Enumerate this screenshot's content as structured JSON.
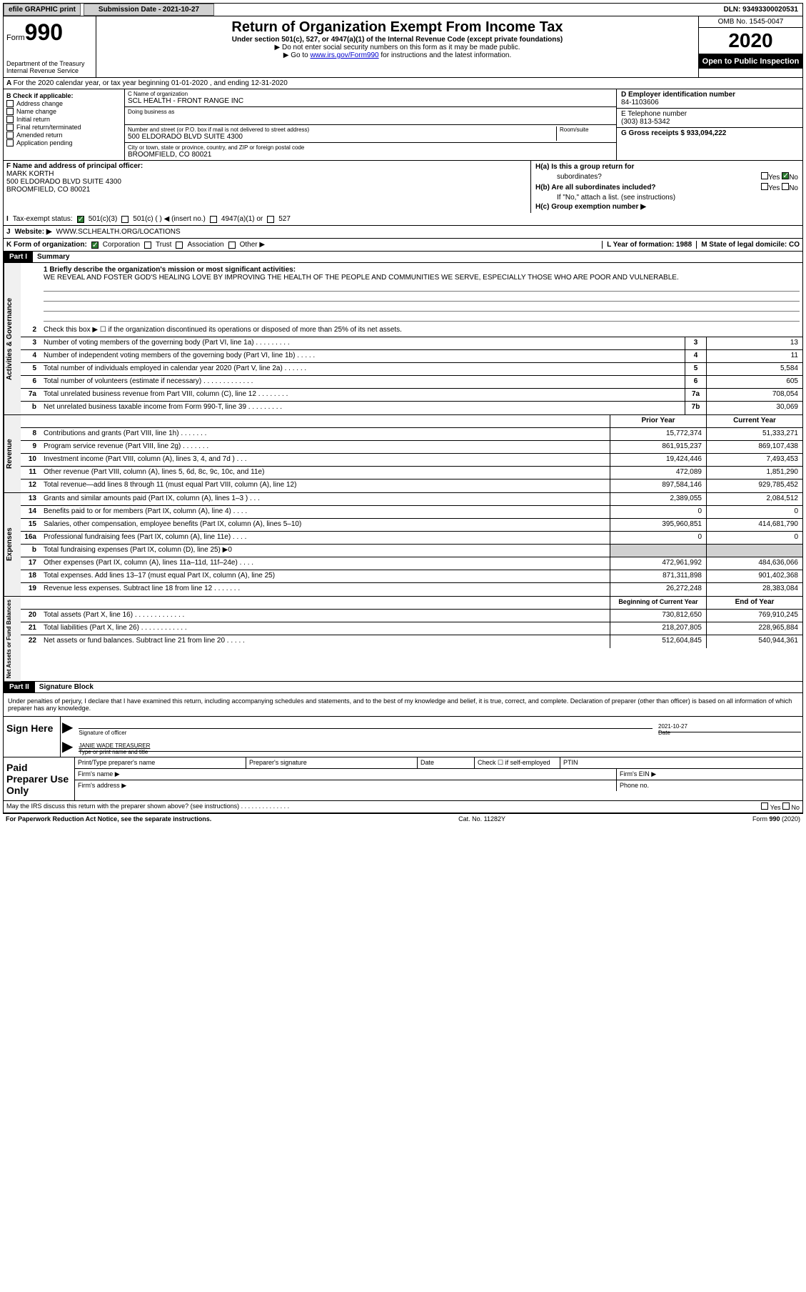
{
  "top": {
    "efile": "efile GRAPHIC print",
    "subLabel": "Submission Date - 2021-10-27",
    "dln": "DLN: 93493300020531"
  },
  "header": {
    "formWord": "Form",
    "formNum": "990",
    "title": "Return of Organization Exempt From Income Tax",
    "subtitle": "Under section 501(c), 527, or 4947(a)(1) of the Internal Revenue Code (except private foundations)",
    "line1": "▶ Do not enter social security numbers on this form as it may be made public.",
    "line2a": "▶ Go to ",
    "link": "www.irs.gov/Form990",
    "line2b": " for instructions and the latest information.",
    "omb": "OMB No. 1545-0047",
    "year": "2020",
    "openPublic": "Open to Public Inspection",
    "dept": "Department of the Treasury Internal Revenue Service"
  },
  "sectionA": "For the 2020 calendar year, or tax year beginning 01-01-2020   , and ending 12-31-2020",
  "boxB": {
    "label": "B Check if applicable:",
    "items": [
      "Address change",
      "Name change",
      "Initial return",
      "Final return/terminated",
      "Amended return",
      "Application pending"
    ]
  },
  "boxC": {
    "nameLabel": "C Name of organization",
    "name": "SCL HEALTH - FRONT RANGE INC",
    "dbaLabel": "Doing business as",
    "addrLabel": "Number and street (or P.O. box if mail is not delivered to street address)",
    "roomLabel": "Room/suite",
    "addr": "500 ELDORADO BLVD SUITE 4300",
    "cityLabel": "City or town, state or province, country, and ZIP or foreign postal code",
    "city": "BROOMFIELD, CO  80021"
  },
  "boxD": {
    "label": "D Employer identification number",
    "val": "84-1103606"
  },
  "boxE": {
    "label": "E Telephone number",
    "val": "(303) 813-5342"
  },
  "boxG": {
    "label": "G Gross receipts $ 933,094,222"
  },
  "boxF": {
    "label": "F  Name and address of principal officer:",
    "name": "MARK KORTH",
    "addr1": "500 ELDORADO BLVD SUITE 4300",
    "addr2": "BROOMFIELD, CO  80021"
  },
  "boxH": {
    "a": "H(a)  Is this a group return for",
    "a2": "subordinates?",
    "b": "H(b)  Are all subordinates included?",
    "note": "If \"No,\" attach a list. (see instructions)",
    "c": "H(c)  Group exemption number ▶"
  },
  "boxI": {
    "label": "Tax-exempt status:",
    "opts": [
      "501(c)(3)",
      "501(c) (  ) ◀ (insert no.)",
      "4947(a)(1) or",
      "527"
    ]
  },
  "boxJ": {
    "label": "Website: ▶",
    "val": "WWW.SCLHEALTH.ORG/LOCATIONS"
  },
  "boxK": {
    "label": "K Form of organization:",
    "opts": [
      "Corporation",
      "Trust",
      "Association",
      "Other ▶"
    ]
  },
  "boxL": {
    "label": "L Year of formation: 1988"
  },
  "boxM": {
    "label": "M State of legal domicile: CO"
  },
  "part1": {
    "header": "Part I",
    "title": "Summary"
  },
  "mission": {
    "q": "1  Briefly describe the organization's mission or most significant activities:",
    "text": "WE REVEAL AND FOSTER GOD'S HEALING LOVE BY IMPROVING THE HEALTH OF THE PEOPLE AND COMMUNITIES WE SERVE, ESPECIALLY THOSE WHO ARE POOR AND VULNERABLE."
  },
  "governance": {
    "sideLabel": "Activities & Governance",
    "rows": [
      {
        "n": "2",
        "t": "Check this box ▶ ☐ if the organization discontinued its operations or disposed of more than 25% of its net assets."
      },
      {
        "n": "3",
        "t": "Number of voting members of the governing body (Part VI, line 1a)  .   .   .   .   .   .   .   .   .",
        "box": "3",
        "v": "13"
      },
      {
        "n": "4",
        "t": "Number of independent voting members of the governing body (Part VI, line 1b)  .   .   .   .   .",
        "box": "4",
        "v": "11"
      },
      {
        "n": "5",
        "t": "Total number of individuals employed in calendar year 2020 (Part V, line 2a)  .   .   .   .   .   .",
        "box": "5",
        "v": "5,584"
      },
      {
        "n": "6",
        "t": "Total number of volunteers (estimate if necessary)  .   .   .   .   .   .   .   .   .   .   .   .   .",
        "box": "6",
        "v": "605"
      },
      {
        "n": "7a",
        "t": "Total unrelated business revenue from Part VIII, column (C), line 12  .   .   .   .   .   .   .   .",
        "box": "7a",
        "v": "708,054"
      },
      {
        "n": "b",
        "t": "Net unrelated business taxable income from Form 990-T, line 39  .   .   .   .   .   .   .   .   .",
        "box": "7b",
        "v": "30,069"
      }
    ]
  },
  "revenueHeader": {
    "prior": "Prior Year",
    "current": "Current Year"
  },
  "revenue": {
    "sideLabel": "Revenue",
    "rows": [
      {
        "n": "8",
        "t": "Contributions and grants (Part VIII, line 1h)  .   .   .   .   .   .   .",
        "p": "15,772,374",
        "c": "51,333,271"
      },
      {
        "n": "9",
        "t": "Program service revenue (Part VIII, line 2g)  .   .   .   .   .   .   .",
        "p": "861,915,237",
        "c": "869,107,438"
      },
      {
        "n": "10",
        "t": "Investment income (Part VIII, column (A), lines 3, 4, and 7d )  .   .   .",
        "p": "19,424,446",
        "c": "7,493,453"
      },
      {
        "n": "11",
        "t": "Other revenue (Part VIII, column (A), lines 5, 6d, 8c, 9c, 10c, and 11e)",
        "p": "472,089",
        "c": "1,851,290"
      },
      {
        "n": "12",
        "t": "Total revenue—add lines 8 through 11 (must equal Part VIII, column (A), line 12)",
        "p": "897,584,146",
        "c": "929,785,452"
      }
    ]
  },
  "expenses": {
    "sideLabel": "Expenses",
    "rows": [
      {
        "n": "13",
        "t": "Grants and similar amounts paid (Part IX, column (A), lines 1–3 )  .   .   .",
        "p": "2,389,055",
        "c": "2,084,512"
      },
      {
        "n": "14",
        "t": "Benefits paid to or for members (Part IX, column (A), line 4)  .   .   .   .",
        "p": "0",
        "c": "0"
      },
      {
        "n": "15",
        "t": "Salaries, other compensation, employee benefits (Part IX, column (A), lines 5–10)",
        "p": "395,960,851",
        "c": "414,681,790"
      },
      {
        "n": "16a",
        "t": "Professional fundraising fees (Part IX, column (A), line 11e)  .   .   .   .",
        "p": "0",
        "c": "0"
      },
      {
        "n": "b",
        "t": "Total fundraising expenses (Part IX, column (D), line 25) ▶0",
        "grey": true
      },
      {
        "n": "17",
        "t": "Other expenses (Part IX, column (A), lines 11a–11d, 11f–24e)  .   .   .   .",
        "p": "472,961,992",
        "c": "484,636,066"
      },
      {
        "n": "18",
        "t": "Total expenses. Add lines 13–17 (must equal Part IX, column (A), line 25)",
        "p": "871,311,898",
        "c": "901,402,368"
      },
      {
        "n": "19",
        "t": "Revenue less expenses. Subtract line 18 from line 12  .   .   .   .   .   .   .",
        "p": "26,272,248",
        "c": "28,383,084"
      }
    ]
  },
  "netHeader": {
    "begin": "Beginning of Current Year",
    "end": "End of Year"
  },
  "netAssets": {
    "sideLabel": "Net Assets or Fund Balances",
    "rows": [
      {
        "n": "20",
        "t": "Total assets (Part X, line 16)  .   .   .   .   .   .   .   .   .   .   .   .   .",
        "p": "730,812,650",
        "c": "769,910,245"
      },
      {
        "n": "21",
        "t": "Total liabilities (Part X, line 26)  .   .   .   .   .   .   .   .   .   .   .   .",
        "p": "218,207,805",
        "c": "228,965,884"
      },
      {
        "n": "22",
        "t": "Net assets or fund balances. Subtract line 21 from line 20  .   .   .   .   .",
        "p": "512,604,845",
        "c": "540,944,361"
      }
    ]
  },
  "part2": {
    "header": "Part II",
    "title": "Signature Block"
  },
  "sig": {
    "decl": "Under penalties of perjury, I declare that I have examined this return, including accompanying schedules and statements, and to the best of my knowledge and belief, it is true, correct, and complete. Declaration of preparer (other than officer) is based on all information of which preparer has any knowledge.",
    "signHere": "Sign Here",
    "sigOfficer": "Signature of officer",
    "date": "Date",
    "dateVal": "2021-10-27",
    "name": "JANIE WADE TREASURER",
    "nameLabel": "Type or print name and title"
  },
  "prep": {
    "title": "Paid Preparer Use Only",
    "h1": "Print/Type preparer's name",
    "h2": "Preparer's signature",
    "h3": "Date",
    "h4": "Check ☐ if self-employed",
    "h5": "PTIN",
    "firm": "Firm's name    ▶",
    "ein": "Firm's EIN ▶",
    "addr": "Firm's address ▶",
    "phone": "Phone no."
  },
  "footer": {
    "q": "May the IRS discuss this return with the preparer shown above? (see instructions)  .   .   .   .   .   .   .   .   .   .   .   .   .   .",
    "yes": "Yes",
    "no": "No",
    "pra": "For Paperwork Reduction Act Notice, see the separate instructions.",
    "cat": "Cat. No. 11282Y",
    "form": "Form 990 (2020)"
  }
}
